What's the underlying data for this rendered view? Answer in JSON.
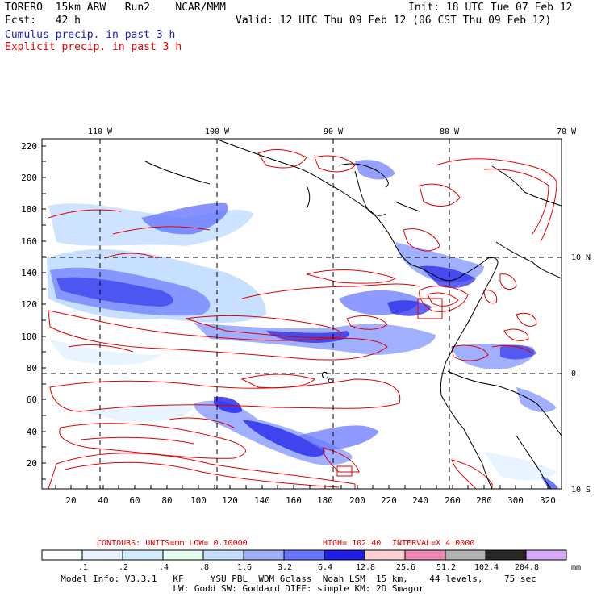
{
  "header": {
    "model": "TORERO  15km ARW   Run2    NCAR/MMM",
    "init": "Init: 18 UTC Tue 07 Feb 12",
    "fcst": "Fcst:   42 h",
    "valid": "Valid: 12 UTC Thu 09 Feb 12 (06 CST Thu 09 Feb 12)",
    "legend_line1": "Cumulus precip. in past 3 h",
    "legend_line2": "Explicit precip. in past 3 h"
  },
  "map": {
    "lon_labels": [
      "110 W",
      "100 W",
      "90 W",
      "80 W",
      "70 W"
    ],
    "lat_labels": [
      "10 N",
      "0",
      "10 S"
    ],
    "y_ticks": [
      "220",
      "200",
      "180",
      "160",
      "140",
      "120",
      "100",
      "80",
      "60",
      "40",
      "20"
    ],
    "x_ticks": [
      "20",
      "40",
      "60",
      "80",
      "100",
      "120",
      "140",
      "160",
      "180",
      "200",
      "220",
      "240",
      "260",
      "280",
      "300",
      "320"
    ]
  },
  "contours": {
    "label": "CONTOURS:  UNITS=mm  LOW= 0.10000",
    "high": "HIGH=  102.40",
    "interval": "INTERVAL=X  4.0000"
  },
  "colorbar": {
    "labels": [
      ".1",
      ".2",
      ".4",
      ".8",
      "1.6",
      "3.2",
      "6.4",
      "12.8",
      "25.6",
      "51.2",
      "102.4",
      "204.8"
    ],
    "units": "mm",
    "colors": [
      "#ffffff",
      "#e8f4ff",
      "#d4ecff",
      "#e6fff0",
      "#c8e0ff",
      "#a0b0ff",
      "#6878ff",
      "#2020e8",
      "#ffd0d0",
      "#f08ab4",
      "#b4b4b4",
      "#282828",
      "#d8a8ff"
    ]
  },
  "model_info": {
    "line1": "Model Info: V3.3.1   KF     YSU PBL  WDM 6class  Noah LSM  15 km,    44 levels,    75 sec",
    "line2": "LW: Godd SW: Goddard DIFF: simple KM: 2D Smagor"
  }
}
